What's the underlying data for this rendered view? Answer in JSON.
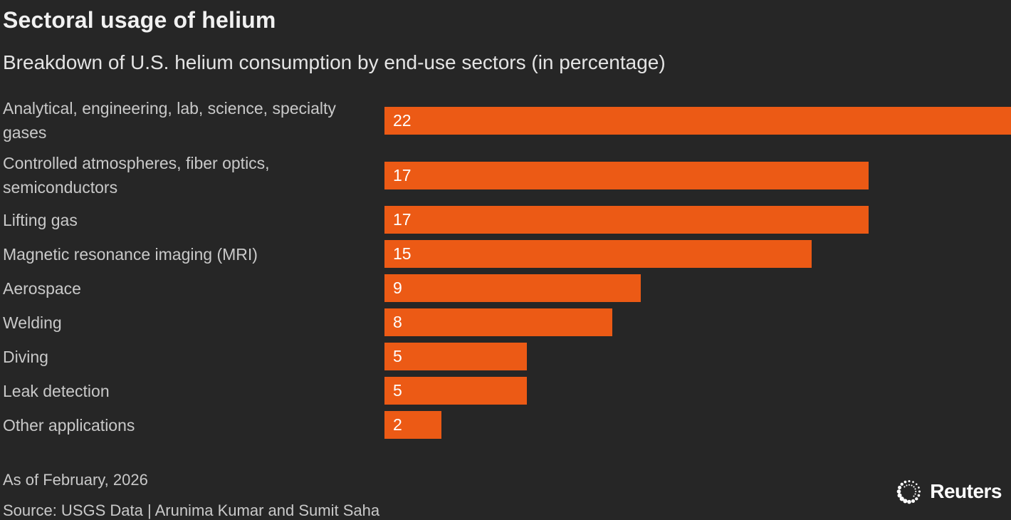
{
  "header": {
    "title": "Sectoral usage of helium",
    "subtitle": "Breakdown of U.S. helium consumption by end-use sectors (in percentage)"
  },
  "chart_data": {
    "type": "bar",
    "orientation": "horizontal",
    "title": "Sectoral usage of helium",
    "subtitle": "Breakdown of U.S. helium consumption by end-use sectors (in percentage)",
    "categories": [
      "Analytical, engineering, lab, science, specialty gases",
      "Controlled atmospheres, fiber optics, semiconductors",
      "Lifting gas",
      "Magnetic resonance imaging (MRI)",
      "Aerospace",
      "Welding",
      "Diving",
      "Leak detection",
      "Other applications"
    ],
    "values": [
      22,
      17,
      17,
      15,
      9,
      8,
      5,
      5,
      2
    ],
    "unit": "percent",
    "xlim": [
      0,
      22
    ],
    "grid": false,
    "value_label_position": "inside-left",
    "bar_color": "#ec5a15"
  },
  "footer": {
    "as_of": "As of February, 2026",
    "source": "Source: USGS Data | Arunima Kumar and Sumit Saha",
    "logo_text": "Reuters"
  },
  "colors": {
    "background": "#262626",
    "bar": "#ec5a15",
    "title_text": "#f1f1f1",
    "subtitle_text": "#e4e4e4",
    "label_text": "#c9c9c9",
    "value_text": "#ffffff",
    "logo": "#ffffff"
  }
}
